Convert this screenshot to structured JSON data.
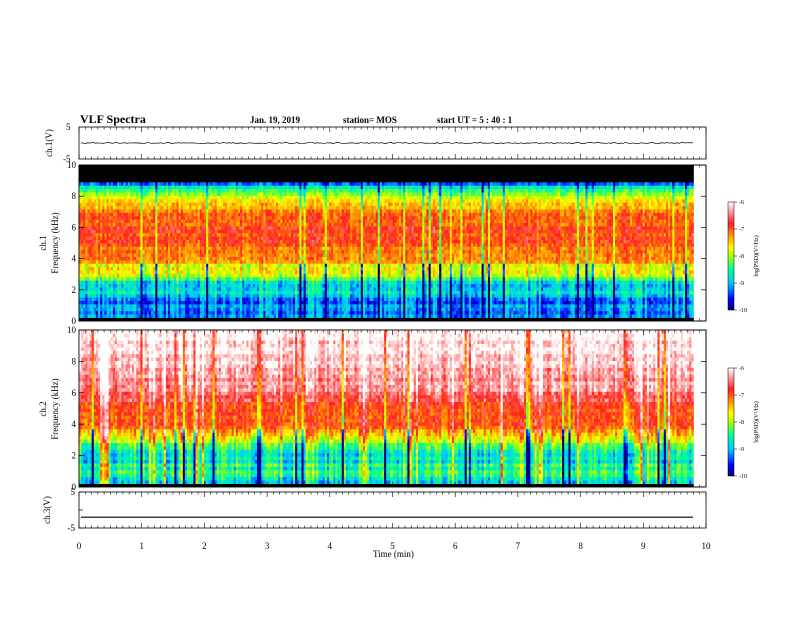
{
  "header": {
    "title": "VLF Spectra",
    "date": "Jan. 19, 2019",
    "station": "station= MOS",
    "start": "start  UT =   5 : 40 : 1"
  },
  "colors": {
    "cmap": [
      "#000080",
      "#0000ff",
      "#00c8ff",
      "#00ff96",
      "#aaff00",
      "#ffff00",
      "#ffa000",
      "#ff2020",
      "#ffffff"
    ],
    "background_black": "#000000",
    "dark_blue": "#0a1ab0"
  },
  "chart_data": [
    {
      "type": "line",
      "panel": "ch1-waveform",
      "ylabel": "ch.1(V)",
      "ylim": [
        -5,
        5
      ],
      "yticks": [
        "5",
        "-5"
      ],
      "xlim": [
        0,
        10
      ],
      "series": [
        {
          "values": [
            0.0
          ]
        }
      ]
    },
    {
      "type": "heatmap",
      "panel": "ch1-spectrogram",
      "ylabel_top": "ch.1",
      "ylabel": "Frequency  (kHz)",
      "ylim": [
        0,
        10
      ],
      "yticks": [
        "0",
        "2",
        "4",
        "6",
        "8",
        "10"
      ],
      "xlim": [
        0,
        9.8
      ],
      "intensity_profile_kHz_vs_logPSD": [
        [
          0.0,
          -9.6
        ],
        [
          1.0,
          -9.2
        ],
        [
          2.0,
          -9.0
        ],
        [
          2.7,
          -8.6
        ],
        [
          3.0,
          -8.0
        ],
        [
          3.5,
          -7.6
        ],
        [
          4.0,
          -7.2
        ],
        [
          5.0,
          -7.0
        ],
        [
          6.0,
          -6.9
        ],
        [
          7.0,
          -7.1
        ],
        [
          7.8,
          -7.6
        ],
        [
          8.3,
          -8.2
        ],
        [
          8.8,
          -9.2
        ],
        [
          9.0,
          -10.0
        ],
        [
          10.0,
          -10.0
        ]
      ],
      "colorbar": {
        "label": "log(PSD)(V²/Hz)",
        "range": [
          -10,
          -6
        ],
        "ticks": [
          "-6",
          "-7",
          "-8",
          "-9",
          "-10"
        ]
      }
    },
    {
      "type": "heatmap",
      "panel": "ch2-spectrogram",
      "ylabel_top": "ch.2",
      "ylabel": "Frequency  (kHz)",
      "ylim": [
        0,
        10
      ],
      "yticks": [
        "0",
        "2",
        "4",
        "6",
        "8",
        "10"
      ],
      "xlim": [
        0,
        9.8
      ],
      "intensity_profile_kHz_vs_logPSD": [
        [
          0.0,
          -9.0
        ],
        [
          1.0,
          -8.6
        ],
        [
          2.0,
          -8.5
        ],
        [
          3.0,
          -8.2
        ],
        [
          3.5,
          -7.4
        ],
        [
          4.0,
          -7.0
        ],
        [
          5.0,
          -7.0
        ],
        [
          6.0,
          -6.5
        ],
        [
          8.0,
          -6.2
        ],
        [
          10.0,
          -6.0
        ]
      ],
      "colorbar": {
        "label": "log(PSD)(V²/Hz)",
        "range": [
          -10,
          -6
        ],
        "ticks": [
          "-6",
          "-7",
          "-8",
          "-9",
          "-10"
        ]
      }
    },
    {
      "type": "line",
      "panel": "ch3-waveform",
      "ylabel": "ch.3(V)",
      "ylim": [
        -5,
        5
      ],
      "yticks": [
        "5",
        "0",
        "-5"
      ],
      "xlim": [
        0,
        10
      ],
      "xlabel": "Time  (min)",
      "xticks": [
        "0",
        "1",
        "2",
        "3",
        "4",
        "5",
        "6",
        "7",
        "8",
        "9",
        "10"
      ],
      "series": [
        {
          "values": [
            -2.0
          ]
        }
      ]
    }
  ]
}
